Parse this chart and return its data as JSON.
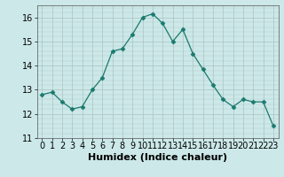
{
  "x": [
    0,
    1,
    2,
    3,
    4,
    5,
    6,
    7,
    8,
    9,
    10,
    11,
    12,
    13,
    14,
    15,
    16,
    17,
    18,
    19,
    20,
    21,
    22,
    23
  ],
  "y": [
    12.8,
    12.9,
    12.5,
    12.2,
    12.3,
    13.0,
    13.5,
    14.6,
    14.7,
    15.3,
    16.0,
    16.15,
    15.75,
    15.0,
    15.5,
    14.5,
    13.85,
    13.2,
    12.6,
    12.3,
    12.6,
    12.5,
    12.5,
    11.5
  ],
  "line_color": "#1a7a6e",
  "marker": "D",
  "marker_size": 2.5,
  "bg_color": "#cce8e8",
  "grid_color_major": "#b0c8c8",
  "grid_color_minor": "#b0c8c8",
  "xlabel": "Humidex (Indice chaleur)",
  "ylim": [
    11,
    16.5
  ],
  "xlim": [
    -0.5,
    23.5
  ],
  "yticks": [
    11,
    12,
    13,
    14,
    15,
    16
  ],
  "xticks": [
    0,
    1,
    2,
    3,
    4,
    5,
    6,
    7,
    8,
    9,
    10,
    11,
    12,
    13,
    14,
    15,
    16,
    17,
    18,
    19,
    20,
    21,
    22,
    23
  ],
  "xlabel_fontsize": 8,
  "tick_fontsize": 7
}
